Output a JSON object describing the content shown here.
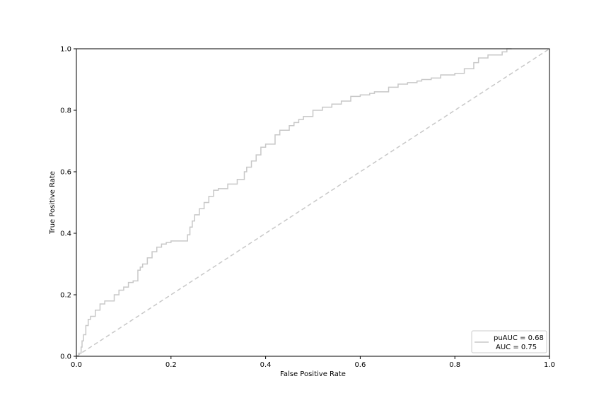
{
  "chart_data": {
    "type": "line",
    "title": "",
    "xlabel": "False Positive Rate",
    "ylabel": "True Positive Rate",
    "xlim": [
      0.0,
      1.0
    ],
    "ylim": [
      0.0,
      1.0
    ],
    "x_ticks": [
      "0.0",
      "0.2",
      "0.4",
      "0.6",
      "0.8",
      "1.0"
    ],
    "y_ticks": [
      "0.0",
      "0.2",
      "0.4",
      "0.6",
      "0.8",
      "1.0"
    ],
    "grid": false,
    "legend_position": "lower right",
    "legend": {
      "line1": "puAUC = 0.68",
      "line2": "AUC = 0.75"
    },
    "colors": {
      "roc": "#c8c8c8",
      "diagonal": "#c8c8c8",
      "axes": "#000000"
    },
    "series": [
      {
        "name": "puAUC = 0.68 / AUC = 0.75",
        "style": "step",
        "x": [
          0.0,
          0.005,
          0.01,
          0.012,
          0.015,
          0.02,
          0.025,
          0.03,
          0.04,
          0.05,
          0.06,
          0.08,
          0.09,
          0.1,
          0.11,
          0.12,
          0.13,
          0.135,
          0.14,
          0.15,
          0.16,
          0.17,
          0.18,
          0.19,
          0.2,
          0.22,
          0.235,
          0.24,
          0.245,
          0.25,
          0.26,
          0.27,
          0.28,
          0.29,
          0.3,
          0.32,
          0.34,
          0.355,
          0.36,
          0.37,
          0.38,
          0.39,
          0.4,
          0.42,
          0.43,
          0.45,
          0.46,
          0.47,
          0.48,
          0.5,
          0.52,
          0.54,
          0.56,
          0.58,
          0.6,
          0.62,
          0.63,
          0.66,
          0.68,
          0.7,
          0.72,
          0.73,
          0.75,
          0.77,
          0.8,
          0.82,
          0.84,
          0.85,
          0.87,
          0.9,
          0.91,
          0.92
        ],
        "y": [
          0.0,
          0.01,
          0.03,
          0.05,
          0.07,
          0.1,
          0.12,
          0.13,
          0.15,
          0.17,
          0.18,
          0.2,
          0.215,
          0.225,
          0.24,
          0.245,
          0.28,
          0.29,
          0.3,
          0.32,
          0.34,
          0.355,
          0.365,
          0.37,
          0.375,
          0.375,
          0.395,
          0.42,
          0.44,
          0.46,
          0.48,
          0.5,
          0.52,
          0.54,
          0.545,
          0.56,
          0.575,
          0.6,
          0.615,
          0.635,
          0.655,
          0.68,
          0.69,
          0.72,
          0.735,
          0.75,
          0.76,
          0.77,
          0.78,
          0.8,
          0.81,
          0.82,
          0.83,
          0.845,
          0.85,
          0.855,
          0.86,
          0.875,
          0.885,
          0.89,
          0.895,
          0.9,
          0.905,
          0.915,
          0.92,
          0.935,
          0.955,
          0.97,
          0.98,
          0.99,
          1.0,
          1.0
        ]
      },
      {
        "name": "chance",
        "style": "dashed",
        "x": [
          0.0,
          1.0
        ],
        "y": [
          0.0,
          1.0
        ]
      }
    ]
  }
}
